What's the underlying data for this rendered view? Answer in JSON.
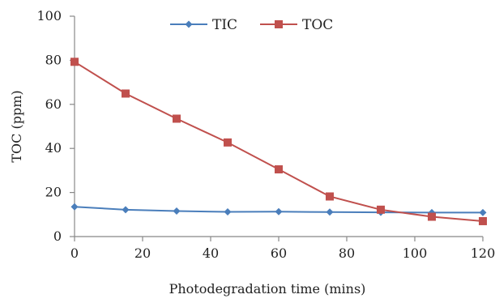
{
  "chart_data": {
    "type": "line",
    "xlabel": "Photodegradation time (mins)",
    "ylabel": "TOC (ppm)",
    "xlim": [
      0,
      120
    ],
    "ylim": [
      0,
      100
    ],
    "xticks": [
      "0",
      "20",
      "40",
      "60",
      "80",
      "100",
      "120"
    ],
    "yticks": [
      "0",
      "20",
      "40",
      "60",
      "80",
      "100"
    ],
    "grid": false,
    "legend_position": "top-center",
    "x": [
      0,
      15,
      30,
      45,
      60,
      75,
      90,
      105,
      120
    ],
    "series": [
      {
        "name": "TIC",
        "color": "#4a7ebb",
        "marker": "diamond",
        "values": [
          13.5,
          12.2,
          11.6,
          11.2,
          11.3,
          11.1,
          11.0,
          10.9,
          10.9
        ]
      },
      {
        "name": "TOC",
        "color": "#c0504d",
        "marker": "square",
        "values": [
          79.3,
          64.9,
          53.5,
          42.7,
          30.5,
          18.2,
          12.2,
          9.0,
          7.0
        ]
      }
    ]
  }
}
